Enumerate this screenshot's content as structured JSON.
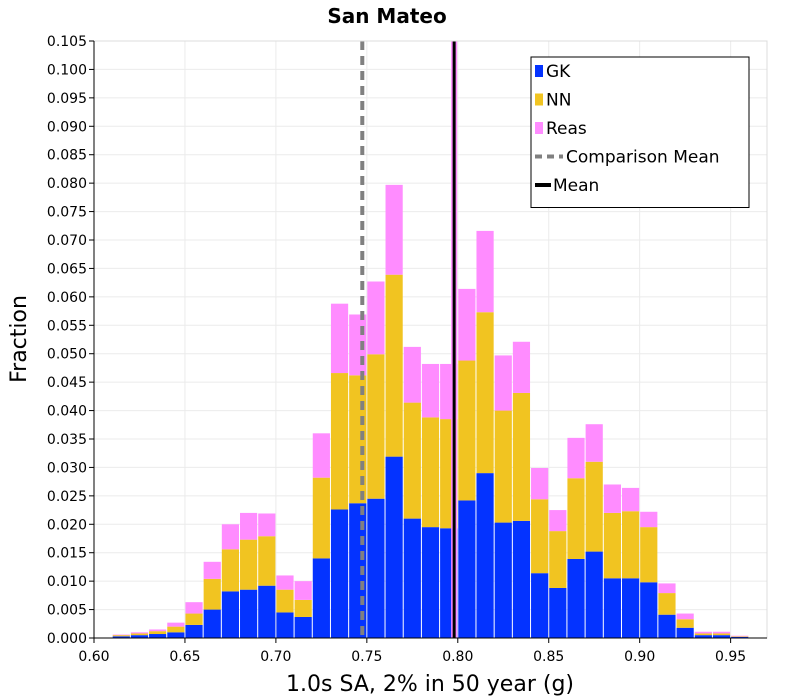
{
  "chart_data": {
    "type": "bar",
    "stacked": true,
    "title": "San Mateo",
    "xlabel": "1.0s SA, 2% in 50 year (g)",
    "ylabel": "Fraction",
    "xlim": [
      0.6,
      0.97
    ],
    "ylim": [
      0,
      0.105
    ],
    "x_ticks": [
      "0.60",
      "0.65",
      "0.70",
      "0.75",
      "0.80",
      "0.85",
      "0.90",
      "0.95"
    ],
    "y_ticks": [
      "0.000",
      "0.005",
      "0.010",
      "0.015",
      "0.020",
      "0.025",
      "0.030",
      "0.035",
      "0.040",
      "0.045",
      "0.050",
      "0.055",
      "0.060",
      "0.065",
      "0.070",
      "0.075",
      "0.080",
      "0.085",
      "0.090",
      "0.095",
      "0.100",
      "0.105"
    ],
    "grid": true,
    "legend_position": "top-right",
    "bin_width": 0.01,
    "x": [
      0.615,
      0.625,
      0.635,
      0.645,
      0.655,
      0.665,
      0.675,
      0.685,
      0.695,
      0.705,
      0.715,
      0.725,
      0.735,
      0.745,
      0.755,
      0.765,
      0.775,
      0.785,
      0.795,
      0.805,
      0.815,
      0.825,
      0.835,
      0.845,
      0.855,
      0.865,
      0.875,
      0.885,
      0.895,
      0.905,
      0.915,
      0.925,
      0.935,
      0.945,
      0.955
    ],
    "series": [
      {
        "name": "GK",
        "color": "#0433ff",
        "values": [
          0.0003,
          0.0005,
          0.0007,
          0.001,
          0.0023,
          0.005,
          0.0082,
          0.0085,
          0.0092,
          0.0045,
          0.0037,
          0.014,
          0.0226,
          0.0237,
          0.0245,
          0.0319,
          0.021,
          0.0195,
          0.0193,
          0.0242,
          0.029,
          0.0203,
          0.0206,
          0.0114,
          0.0088,
          0.0139,
          0.0152,
          0.0105,
          0.0105,
          0.0098,
          0.0041,
          0.0018,
          0.0005,
          0.0005,
          0.0002
        ]
      },
      {
        "name": "NN",
        "color": "#f1c421",
        "values": [
          0.0002,
          0.0003,
          0.0005,
          0.001,
          0.002,
          0.0054,
          0.0074,
          0.0088,
          0.0087,
          0.004,
          0.003,
          0.0142,
          0.024,
          0.0225,
          0.0254,
          0.032,
          0.0204,
          0.0193,
          0.0192,
          0.0246,
          0.0283,
          0.0197,
          0.0225,
          0.013,
          0.01,
          0.0142,
          0.0158,
          0.0115,
          0.0118,
          0.0097,
          0.0038,
          0.0015,
          0.0003,
          0.0003,
          0.0001
        ]
      },
      {
        "name": "Reas",
        "color": "#ff8cff",
        "values": [
          0.0001,
          0.0002,
          0.0003,
          0.0007,
          0.002,
          0.003,
          0.0044,
          0.0047,
          0.004,
          0.0025,
          0.0033,
          0.0078,
          0.0122,
          0.0107,
          0.0128,
          0.0158,
          0.0098,
          0.0094,
          0.0097,
          0.0126,
          0.0143,
          0.0097,
          0.009,
          0.0055,
          0.0037,
          0.0071,
          0.0066,
          0.005,
          0.0041,
          0.0027,
          0.0017,
          0.001,
          0.0003,
          0.0003,
          0.0001
        ]
      }
    ],
    "lines": [
      {
        "name": "Comparison Mean",
        "x": 0.7475,
        "style": "dashed",
        "color": "#808080"
      },
      {
        "name": "Mean",
        "x": 0.798,
        "style": "solid",
        "color": "#000000"
      }
    ]
  }
}
